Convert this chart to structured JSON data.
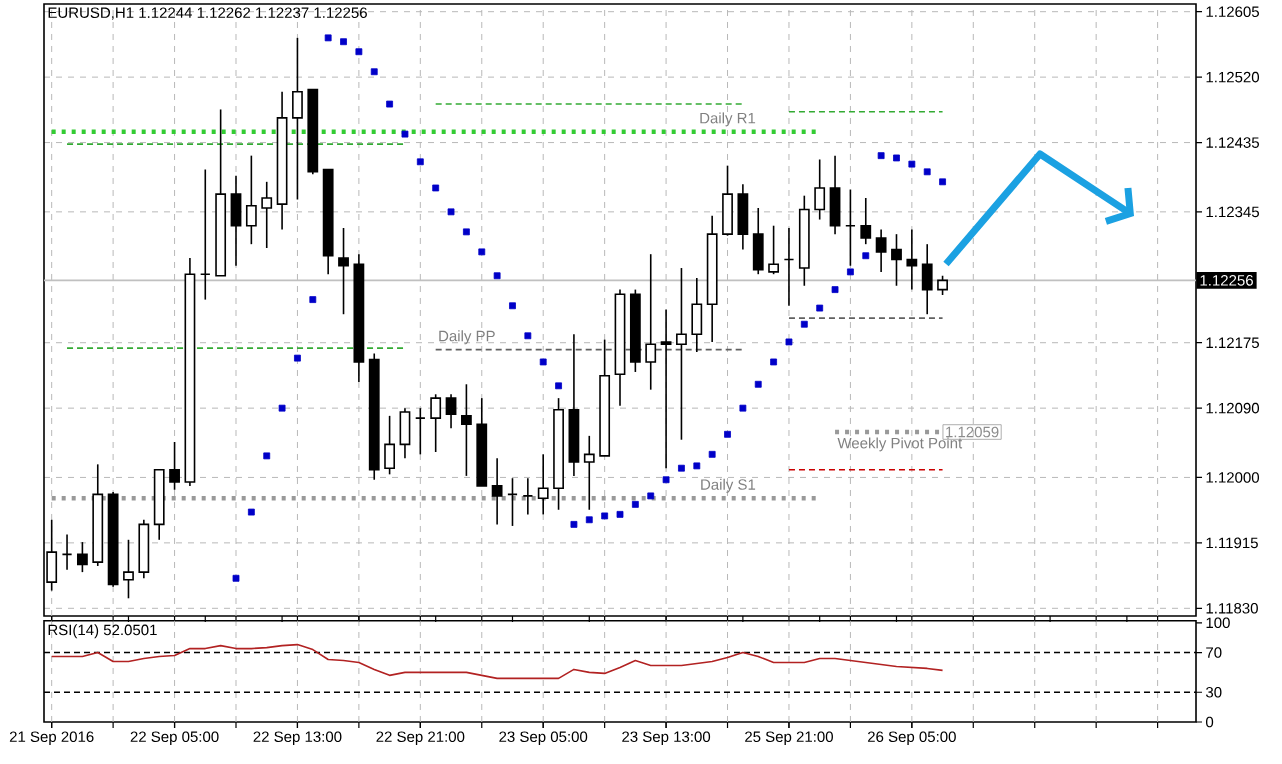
{
  "chart_data": [
    {
      "type": "candlestick",
      "title": "EURUSD,H1  1.12244 1.12262 1.12237 1.12256",
      "categories": [
        null,
        null,
        null,
        null,
        null,
        null,
        null,
        null,
        null,
        null,
        null,
        null,
        null,
        null,
        null,
        null,
        null,
        null,
        null,
        null,
        null,
        null,
        null,
        null,
        null,
        null,
        null,
        null,
        null,
        null,
        null,
        null,
        null,
        null,
        null,
        null,
        null,
        null,
        null,
        null,
        null,
        null,
        null,
        null,
        null,
        null,
        null,
        null,
        null,
        null,
        null,
        null,
        null,
        null,
        null,
        null,
        null,
        null,
        null,
        null,
        null,
        null,
        null,
        null,
        null,
        null,
        null,
        null,
        null,
        null,
        null,
        null,
        null,
        null,
        null
      ],
      "ohlc": [
        [
          1.11864,
          1.11945,
          1.11853,
          1.11903
        ],
        [
          1.119,
          1.11926,
          1.1188,
          1.119
        ],
        [
          1.119,
          1.11916,
          1.11877,
          1.11887
        ],
        [
          1.1189,
          1.12017,
          1.11885,
          1.11978
        ],
        [
          1.11978,
          1.11981,
          1.11858,
          1.11861
        ],
        [
          1.11867,
          1.11919,
          1.11843,
          1.11877
        ],
        [
          1.11877,
          1.11945,
          1.11869,
          1.11939
        ],
        [
          1.11939,
          1.1201,
          1.11919,
          1.1201
        ],
        [
          1.1201,
          1.12046,
          1.11984,
          1.11994
        ],
        [
          1.11994,
          1.12285,
          1.11989,
          1.12264
        ],
        [
          1.12264,
          1.124,
          1.12231,
          1.12264
        ],
        [
          1.12262,
          1.12478,
          1.12262,
          1.12368
        ],
        [
          1.12368,
          1.12392,
          1.12275,
          1.12327
        ],
        [
          1.12327,
          1.12418,
          1.12303,
          1.12353
        ],
        [
          1.1235,
          1.12384,
          1.12298,
          1.12363
        ],
        [
          1.12355,
          1.12501,
          1.12322,
          1.12467
        ],
        [
          1.12467,
          1.12571,
          1.12361,
          1.12501
        ],
        [
          1.12504,
          1.12504,
          1.12394,
          1.12397
        ],
        [
          1.124,
          1.124,
          1.12264,
          1.12288
        ],
        [
          1.12285,
          1.12324,
          1.12212,
          1.12275
        ],
        [
          1.12277,
          1.1229,
          1.12124,
          1.1215
        ],
        [
          1.12153,
          1.12161,
          1.11997,
          1.1201
        ],
        [
          1.12012,
          1.1208,
          1.12004,
          1.12043
        ],
        [
          1.12043,
          1.1209,
          1.12025,
          1.12085
        ],
        [
          1.12077,
          1.1209,
          1.1203,
          1.12077
        ],
        [
          1.12077,
          1.12108,
          1.12033,
          1.12103
        ],
        [
          1.12103,
          1.12108,
          1.12064,
          1.12082
        ],
        [
          1.1208,
          1.12121,
          1.12002,
          1.12069
        ],
        [
          1.12069,
          1.12103,
          1.11989,
          1.11989
        ],
        [
          1.11989,
          1.12025,
          1.11939,
          1.11976
        ],
        [
          1.11978,
          1.11999,
          1.11937,
          1.11978
        ],
        [
          1.11976,
          1.11999,
          1.11952,
          1.11976
        ],
        [
          1.11973,
          1.1203,
          1.11952,
          1.11986
        ],
        [
          1.11986,
          1.12103,
          1.11958,
          1.12088
        ],
        [
          1.12088,
          1.12186,
          1.12002,
          1.1202
        ],
        [
          1.1202,
          1.12054,
          1.11958,
          1.1203
        ],
        [
          1.12028,
          1.12179,
          1.12028,
          1.12132
        ],
        [
          1.12134,
          1.12244,
          1.12093,
          1.12238
        ],
        [
          1.12238,
          1.12244,
          1.12137,
          1.1215
        ],
        [
          1.1215,
          1.1229,
          1.12114,
          1.12173
        ],
        [
          1.12176,
          1.12218,
          1.12012,
          1.12173
        ],
        [
          1.12173,
          1.12272,
          1.12049,
          1.12186
        ],
        [
          1.12186,
          1.12259,
          1.12163,
          1.12225
        ],
        [
          1.12225,
          1.1234,
          1.12176,
          1.12316
        ],
        [
          1.12316,
          1.12405,
          1.12314,
          1.12368
        ],
        [
          1.12368,
          1.12381,
          1.12296,
          1.12316
        ],
        [
          1.12316,
          1.1235,
          1.12264,
          1.1227
        ],
        [
          1.12267,
          1.12327,
          1.12264,
          1.12277
        ],
        [
          1.12283,
          1.12324,
          1.12223,
          1.12283
        ],
        [
          1.12272,
          1.12366,
          1.12249,
          1.12348
        ],
        [
          1.12348,
          1.12413,
          1.12335,
          1.12376
        ],
        [
          1.12376,
          1.12418,
          1.12316,
          1.12327
        ],
        [
          1.12327,
          1.12374,
          1.12275,
          1.12327
        ],
        [
          1.12327,
          1.12363,
          1.12303,
          1.12311
        ],
        [
          1.12311,
          1.12322,
          1.12267,
          1.12293
        ],
        [
          1.12296,
          1.12316,
          1.12249,
          1.12283
        ],
        [
          1.12283,
          1.12322,
          1.12244,
          1.12275
        ],
        [
          1.12277,
          1.12303,
          1.12212,
          1.12244
        ],
        [
          1.12244,
          1.12262,
          1.12237,
          1.12256
        ],
        null,
        null,
        null,
        null,
        null,
        null,
        null,
        null,
        null,
        null,
        null,
        null,
        null,
        null,
        null,
        null
      ],
      "series": [
        {
          "type": "scatter",
          "marker": "square",
          "color": "#0000c8",
          "values": [
            null,
            null,
            null,
            null,
            null,
            null,
            null,
            null,
            null,
            null,
            null,
            null,
            1.11869,
            1.11955,
            1.12028,
            1.1209,
            1.12155,
            1.12231,
            1.12571,
            1.12566,
            1.12553,
            1.12527,
            1.12485,
            1.12446,
            1.1241,
            1.12376,
            1.12345,
            1.12319,
            1.12293,
            1.12262,
            1.12223,
            1.12184,
            1.1215,
            1.12119,
            1.11939,
            1.11945,
            1.1195,
            1.11952,
            1.11965,
            1.11976,
            1.11997,
            1.12012,
            1.12015,
            1.1203,
            1.12056,
            1.1209,
            1.12121,
            1.1215,
            1.12176,
            1.12199,
            1.1222,
            1.12244,
            1.12267,
            1.12288,
            1.12418,
            1.12415,
            1.12407,
            1.12397,
            1.12384,
            null,
            null,
            null,
            null,
            null,
            null,
            null,
            null,
            null,
            null,
            null,
            null,
            null,
            null,
            null,
            null
          ]
        },
        {
          "type": "line",
          "name": "Daily R1",
          "line_style": "dotted",
          "color": "#33cc33",
          "values": [
            1.12449,
            1.12449,
            1.12449,
            1.12449,
            1.12449,
            1.12449,
            1.12449,
            1.12449,
            1.12449,
            1.12449,
            1.12449,
            1.12449,
            1.12449,
            1.12449,
            1.12449,
            1.12449,
            1.12449,
            1.12449,
            1.12449,
            1.12449,
            1.12449,
            1.12449,
            1.12449,
            1.12449,
            1.12449,
            1.12449,
            1.12449,
            1.12449,
            1.12449,
            1.12449,
            1.12449,
            1.12449,
            1.12449,
            1.12449,
            1.12449,
            1.12449,
            1.12449,
            1.12449,
            1.12449,
            1.12449,
            1.12449,
            1.12449,
            1.12449,
            1.12449,
            1.12449,
            1.12449,
            1.12449,
            1.12449,
            1.12449,
            1.12449,
            1.12449,
            null,
            null,
            null,
            null,
            null,
            null,
            null,
            null,
            null,
            null,
            null,
            null,
            null,
            null,
            null,
            null,
            null,
            null,
            null,
            null,
            null,
            null,
            null,
            null
          ]
        },
        {
          "type": "line",
          "line_style": "dashed",
          "color": "#33aa33",
          "values": [
            null,
            1.12433,
            1.12433,
            1.12433,
            1.12433,
            1.12433,
            1.12433,
            1.12433,
            1.12433,
            1.12433,
            1.12433,
            1.12433,
            1.12433,
            1.12433,
            1.12433,
            1.12433,
            1.12433,
            1.12433,
            1.12433,
            1.12433,
            1.12433,
            1.12433,
            1.12433,
            1.12433,
            null,
            null,
            null,
            null,
            null,
            null,
            null,
            null,
            null,
            null,
            null,
            null,
            null,
            null,
            null,
            null,
            null,
            null,
            null,
            null,
            null,
            null,
            null,
            null,
            null,
            null,
            null,
            null,
            null,
            null,
            null,
            null,
            null,
            null,
            null,
            null,
            null,
            null,
            null,
            null,
            null,
            null,
            null,
            null,
            null,
            null,
            null,
            null,
            null,
            null,
            null
          ]
        },
        {
          "type": "line",
          "line_style": "dashed",
          "color": "#33aa33",
          "values": [
            null,
            null,
            null,
            null,
            null,
            null,
            null,
            null,
            null,
            null,
            null,
            null,
            null,
            null,
            null,
            null,
            null,
            null,
            null,
            null,
            null,
            null,
            null,
            null,
            null,
            1.12485,
            1.12485,
            1.12485,
            1.12485,
            1.12485,
            1.12485,
            1.12485,
            1.12485,
            1.12485,
            1.12485,
            1.12485,
            1.12485,
            1.12485,
            1.12485,
            1.12485,
            1.12485,
            1.12485,
            1.12485,
            1.12485,
            1.12485,
            1.12485,
            null,
            null,
            null,
            null,
            null,
            null,
            null,
            null,
            null,
            null,
            null,
            null,
            null,
            null,
            null,
            null,
            null,
            null,
            null,
            null,
            null,
            null,
            null,
            null,
            null,
            null,
            null,
            null,
            null
          ]
        },
        {
          "type": "line",
          "line_style": "dashed",
          "color": "#33aa33",
          "values": [
            null,
            null,
            null,
            null,
            null,
            null,
            null,
            null,
            null,
            null,
            null,
            null,
            null,
            null,
            null,
            null,
            null,
            null,
            null,
            null,
            null,
            null,
            null,
            null,
            null,
            null,
            null,
            null,
            null,
            null,
            null,
            null,
            null,
            null,
            null,
            null,
            null,
            null,
            null,
            null,
            null,
            null,
            null,
            null,
            null,
            null,
            null,
            null,
            1.12475,
            1.12475,
            1.12475,
            1.12475,
            1.12475,
            1.12475,
            1.12475,
            1.12475,
            1.12475,
            1.12475,
            1.12475,
            null,
            null,
            null,
            null,
            null,
            null,
            null,
            null,
            null,
            null,
            null,
            null,
            null,
            null,
            null,
            null
          ]
        },
        {
          "type": "line",
          "line_style": "dashed",
          "color": "#33aa33",
          "values": [
            null,
            1.12168,
            1.12168,
            1.12168,
            1.12168,
            1.12168,
            1.12168,
            1.12168,
            1.12168,
            1.12168,
            1.12168,
            1.12168,
            1.12168,
            1.12168,
            1.12168,
            1.12168,
            1.12168,
            1.12168,
            1.12168,
            1.12168,
            1.12168,
            1.12168,
            1.12168,
            1.12168,
            null,
            null,
            null,
            null,
            null,
            null,
            null,
            null,
            null,
            null,
            null,
            null,
            null,
            null,
            null,
            null,
            null,
            null,
            null,
            null,
            null,
            null,
            null,
            null,
            null,
            null,
            null,
            null,
            null,
            null,
            null,
            null,
            null,
            null,
            null,
            null,
            null,
            null,
            null,
            null,
            null,
            null,
            null,
            null,
            null,
            null,
            null,
            null,
            null,
            null,
            null
          ]
        },
        {
          "type": "line",
          "name": "Daily PP",
          "line_style": "dashed",
          "color": "#606060",
          "values": [
            null,
            null,
            null,
            null,
            null,
            null,
            null,
            null,
            null,
            null,
            null,
            null,
            null,
            null,
            null,
            null,
            null,
            null,
            null,
            null,
            null,
            null,
            null,
            null,
            null,
            1.12166,
            1.12166,
            1.12166,
            1.12166,
            1.12166,
            1.12166,
            1.12166,
            1.12166,
            1.12166,
            1.12166,
            1.12166,
            1.12166,
            1.12166,
            1.12166,
            1.12166,
            1.12166,
            1.12166,
            1.12166,
            1.12166,
            1.12166,
            1.12166,
            null,
            null,
            null,
            null,
            null,
            null,
            null,
            null,
            null,
            null,
            null,
            null,
            null,
            null,
            null,
            null,
            null,
            null,
            null,
            null,
            null,
            null,
            null,
            null,
            null,
            null,
            null,
            null,
            null
          ]
        },
        {
          "type": "line",
          "line_style": "dashed",
          "color": "#606060",
          "values": [
            null,
            null,
            null,
            null,
            null,
            null,
            null,
            null,
            null,
            null,
            null,
            null,
            null,
            null,
            null,
            null,
            null,
            null,
            null,
            null,
            null,
            null,
            null,
            null,
            null,
            null,
            null,
            null,
            null,
            null,
            null,
            null,
            null,
            null,
            null,
            null,
            null,
            null,
            null,
            null,
            null,
            null,
            null,
            null,
            null,
            null,
            null,
            null,
            1.12207,
            1.12207,
            1.12207,
            1.12207,
            1.12207,
            1.12207,
            1.12207,
            1.12207,
            1.12207,
            1.12207,
            1.12207,
            null,
            null,
            null,
            null,
            null,
            null,
            null,
            null,
            null,
            null,
            null,
            null,
            null,
            null,
            null,
            null
          ]
        },
        {
          "type": "line",
          "line_style": "dashed",
          "color": "#cc0000",
          "values": [
            null,
            null,
            null,
            null,
            null,
            null,
            null,
            null,
            null,
            null,
            null,
            null,
            null,
            null,
            null,
            null,
            null,
            null,
            null,
            null,
            null,
            null,
            null,
            null,
            null,
            null,
            null,
            null,
            null,
            null,
            null,
            null,
            null,
            null,
            null,
            null,
            null,
            null,
            null,
            null,
            null,
            null,
            null,
            null,
            null,
            null,
            null,
            null,
            1.1201,
            1.1201,
            1.1201,
            1.1201,
            1.1201,
            1.1201,
            1.1201,
            1.1201,
            1.1201,
            1.1201,
            1.1201,
            null,
            null,
            null,
            null,
            null,
            null,
            null,
            null,
            null,
            null,
            null,
            null,
            null,
            null,
            null,
            null
          ]
        },
        {
          "type": "line",
          "name": "Daily S1",
          "line_style": "dotted",
          "color": "#999999",
          "values": [
            1.11973,
            1.11973,
            1.11973,
            1.11973,
            1.11973,
            1.11973,
            1.11973,
            1.11973,
            1.11973,
            1.11973,
            1.11973,
            1.11973,
            1.11973,
            1.11973,
            1.11973,
            1.11973,
            1.11973,
            1.11973,
            1.11973,
            1.11973,
            1.11973,
            1.11973,
            1.11973,
            1.11973,
            1.11973,
            1.11973,
            1.11973,
            1.11973,
            1.11973,
            1.11973,
            1.11973,
            1.11973,
            1.11973,
            1.11973,
            1.11973,
            1.11973,
            1.11973,
            1.11973,
            1.11973,
            1.11973,
            1.11973,
            1.11973,
            1.11973,
            1.11973,
            1.11973,
            1.11973,
            1.11973,
            1.11973,
            1.11973,
            1.11973,
            1.11973,
            null,
            null,
            null,
            null,
            null,
            null,
            null,
            null,
            null,
            null,
            null,
            null,
            null,
            null,
            null,
            null,
            null,
            null,
            null,
            null,
            null,
            null,
            null,
            null
          ]
        },
        {
          "type": "line",
          "name": "Weekly Pivot Point",
          "line_style": "dotted",
          "color": "#999999",
          "values": [
            null,
            null,
            null,
            null,
            null,
            null,
            null,
            null,
            null,
            null,
            null,
            null,
            null,
            null,
            null,
            null,
            null,
            null,
            null,
            null,
            null,
            null,
            null,
            null,
            null,
            null,
            null,
            null,
            null,
            null,
            null,
            null,
            null,
            null,
            null,
            null,
            null,
            null,
            null,
            null,
            null,
            null,
            null,
            null,
            null,
            null,
            null,
            null,
            null,
            null,
            null,
            1.12059,
            1.12059,
            1.12059,
            1.12059,
            1.12059,
            1.12059,
            1.12059,
            1.12059,
            null,
            null,
            null,
            null,
            null,
            null,
            null,
            null,
            null,
            null,
            null,
            null,
            null,
            null,
            null,
            null
          ],
          "value_labels": [
            null,
            null,
            null,
            null,
            null,
            null,
            null,
            null,
            null,
            null,
            null,
            null,
            null,
            null,
            null,
            null,
            null,
            null,
            null,
            null,
            null,
            null,
            null,
            null,
            null,
            null,
            null,
            null,
            null,
            null,
            null,
            null,
            null,
            null,
            null,
            null,
            null,
            null,
            null,
            null,
            null,
            null,
            null,
            null,
            null,
            null,
            null,
            null,
            null,
            null,
            null,
            null,
            null,
            null,
            null,
            null,
            null,
            null,
            "1.12059",
            null,
            null,
            null,
            null,
            null,
            null,
            null,
            null,
            null,
            null,
            null,
            null,
            null,
            null,
            null,
            null
          ]
        }
      ],
      "ref_lines": [
        {
          "axis": "y",
          "value": 1.12256,
          "label": "1.12256",
          "color": "#c0c0c0",
          "line_style": "solid"
        }
      ],
      "ylim": [
        1.1182,
        1.12615
      ],
      "yticks": [
        {
          "value": 1.1183,
          "label": "1.11830"
        },
        1.11915,
        {
          "value": 1.12,
          "label": "1.12000"
        },
        {
          "value": 1.1209,
          "label": "1.12090"
        },
        1.12175,
        1.12345,
        1.12435,
        {
          "value": 1.1252,
          "label": "1.12520"
        },
        1.12605
      ],
      "grid": true,
      "tick_labels": "y"
    },
    {
      "type": "line",
      "title": "RSI(14) 52.0501",
      "color": "#b22222",
      "categories": [
        "21 Sep 2016",
        null,
        null,
        null,
        null,
        null,
        null,
        null,
        "22 Sep 05:00",
        null,
        null,
        null,
        null,
        null,
        null,
        null,
        "22 Sep 13:00",
        null,
        null,
        null,
        null,
        null,
        null,
        null,
        "22 Sep 21:00",
        null,
        null,
        null,
        null,
        null,
        null,
        null,
        "23 Sep 05:00",
        null,
        null,
        null,
        null,
        null,
        null,
        null,
        "23 Sep 13:00",
        null,
        null,
        null,
        null,
        null,
        null,
        null,
        "25 Sep 21:00",
        null,
        null,
        null,
        null,
        null,
        null,
        null,
        "26 Sep 05:00",
        null,
        null,
        null,
        null,
        null,
        null,
        null,
        null,
        null,
        null,
        null,
        null,
        null,
        null,
        null,
        null,
        null,
        null
      ],
      "values": [
        66,
        66,
        66,
        70,
        61,
        61,
        64,
        66,
        67,
        74,
        74,
        77,
        74,
        74,
        75,
        77,
        78,
        73,
        63,
        62,
        60,
        53,
        47,
        50,
        50,
        50,
        50,
        50,
        47,
        44,
        44,
        44,
        44,
        44,
        53,
        50,
        49,
        55,
        62,
        57,
        57,
        57,
        59,
        61,
        65,
        70,
        66,
        60,
        60,
        60,
        64,
        64,
        62,
        60,
        58,
        56,
        55,
        54,
        52,
        null,
        null,
        null,
        null,
        null,
        null,
        null,
        null,
        null,
        null,
        null,
        null,
        null,
        null,
        null,
        null
      ],
      "ref_lines": [
        {
          "axis": "y",
          "value": 70,
          "color": "#000000",
          "line_style": "dashed"
        },
        {
          "axis": "y",
          "value": 30,
          "color": "#000000",
          "line_style": "dashed"
        }
      ],
      "ylim": [
        0,
        102
      ],
      "yticks": [
        0,
        30,
        70,
        100
      ],
      "grid": "x"
    }
  ]
}
